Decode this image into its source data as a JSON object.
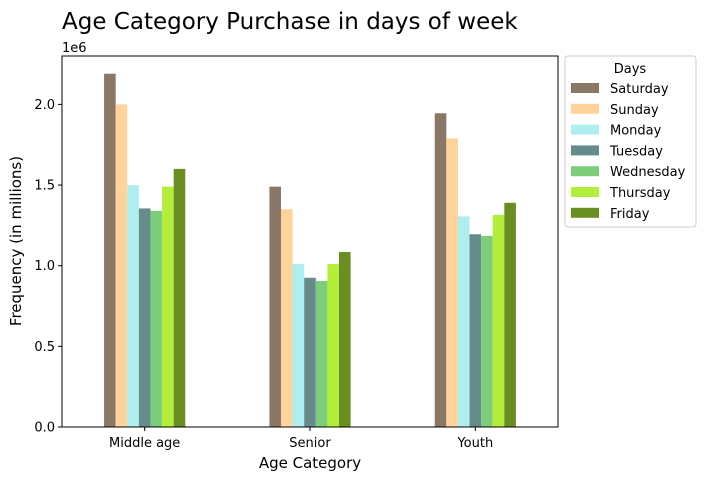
{
  "chart_data": {
    "type": "bar",
    "title": "Age Category Purchase in days of week",
    "xlabel": "Age Category",
    "ylabel": "Frequency (in millions)",
    "y_offset_label": "1e6",
    "categories": [
      "Middle age",
      "Senior",
      "Youth"
    ],
    "ylim": [
      0,
      2300000
    ],
    "yticks": [
      0,
      500000,
      1000000,
      1500000,
      2000000
    ],
    "ytick_labels": [
      "0.0",
      "0.5",
      "1.0",
      "1.5",
      "2.0"
    ],
    "grid": false,
    "legend_title": "Days",
    "legend_position": "outside-top-right",
    "series": [
      {
        "name": "Saturday",
        "color": "#8b7765",
        "values": [
          2190000,
          1490000,
          1945000
        ]
      },
      {
        "name": "Sunday",
        "color": "#ffd39b",
        "values": [
          2000000,
          1350000,
          1790000
        ]
      },
      {
        "name": "Monday",
        "color": "#aeeeee",
        "values": [
          1500000,
          1010000,
          1305000
        ]
      },
      {
        "name": "Tuesday",
        "color": "#668b8b",
        "values": [
          1355000,
          925000,
          1195000
        ]
      },
      {
        "name": "Wednesday",
        "color": "#7ccd7c",
        "values": [
          1340000,
          905000,
          1185000
        ]
      },
      {
        "name": "Thursday",
        "color": "#b3ee3a",
        "values": [
          1490000,
          1010000,
          1315000
        ]
      },
      {
        "name": "Friday",
        "color": "#6b8e23",
        "values": [
          1600000,
          1085000,
          1390000
        ]
      }
    ]
  }
}
